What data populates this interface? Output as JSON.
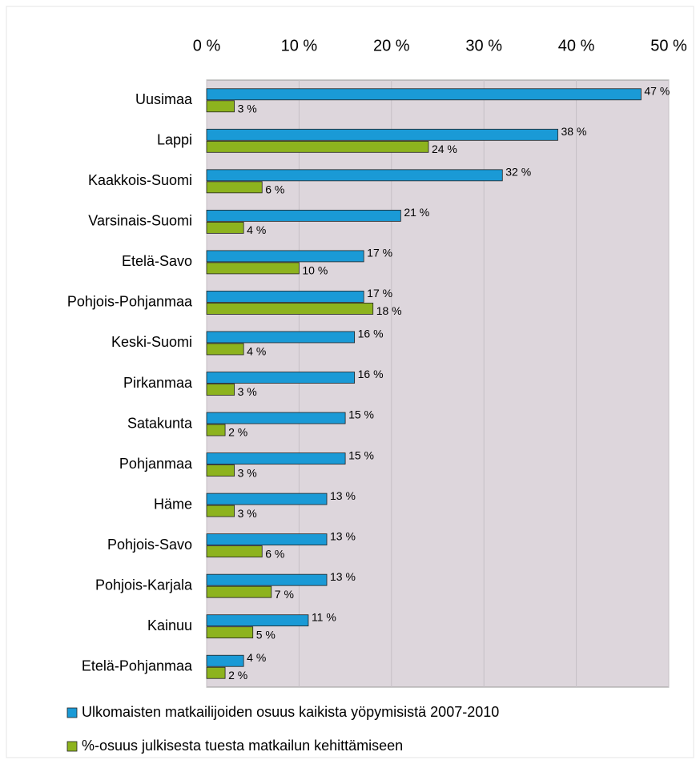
{
  "chart_data": {
    "type": "hbar",
    "categories": [
      "Uusimaa",
      "Lappi",
      "Kaakkois-Suomi",
      "Varsinais-Suomi",
      "Etelä-Savo",
      "Pohjois-Pohjanmaa",
      "Keski-Suomi",
      "Pirkanmaa",
      "Satakunta",
      "Pohjanmaa",
      "Häme",
      "Pohjois-Savo",
      "Pohjois-Karjala",
      "Kainuu",
      "Etelä-Pohjanmaa"
    ],
    "series": [
      {
        "name": "Ulkomaisten matkailijoiden osuus kaikista yöpymisistä 2007-2010",
        "color": "#1a9ad6",
        "values": [
          47,
          38,
          32,
          21,
          17,
          17,
          16,
          16,
          15,
          15,
          13,
          13,
          13,
          11,
          4
        ],
        "value_labels": [
          "47 %",
          "38 %",
          "32 %",
          "21 %",
          "17 %",
          "17 %",
          "16 %",
          "16 %",
          "15 %",
          "15 %",
          "13 %",
          "13 %",
          "13 %",
          "11 %",
          "4 %"
        ]
      },
      {
        "name": "%-osuus julkisesta tuesta matkailun kehittämiseen",
        "color": "#8db31e",
        "values": [
          3,
          24,
          6,
          4,
          10,
          18,
          4,
          3,
          2,
          3,
          3,
          6,
          7,
          5,
          2
        ],
        "value_labels": [
          "3 %",
          "24 %",
          "6 %",
          "4 %",
          "10 %",
          "18 %",
          "4 %",
          "3 %",
          "2 %",
          "3 %",
          "3 %",
          "6 %",
          "7 %",
          "5 %",
          "2 %"
        ]
      }
    ],
    "xlim": [
      0,
      50
    ],
    "xticks": [
      {
        "value": 0,
        "label": "0 %"
      },
      {
        "value": 10,
        "label": "10 %"
      },
      {
        "value": 20,
        "label": "20 %"
      },
      {
        "value": 30,
        "label": "30 %"
      },
      {
        "value": 40,
        "label": "40 %"
      },
      {
        "value": 50,
        "label": "50 %"
      }
    ],
    "grid": true,
    "legend": "bottom",
    "plot_background": "#ddd6dc"
  }
}
